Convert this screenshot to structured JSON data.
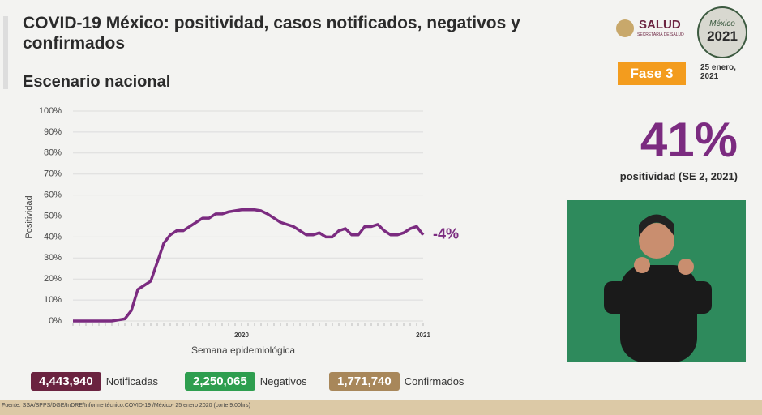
{
  "header": {
    "title": "COVID-19 México: positividad, casos notificados, negativos y confirmados",
    "subtitle": "Escenario nacional"
  },
  "logos": {
    "salud": "SALUD",
    "salud_sub": "SECRETARÍA DE SALUD",
    "mexico": "México",
    "year": "2021"
  },
  "phase": "Fase 3",
  "date": "25 enero, 2021",
  "headline": {
    "value": "41%",
    "caption": "positividad (SE 2, 2021)"
  },
  "summary": [
    {
      "value": "4,443,940",
      "label": "Notificadas",
      "color": "#6b2340"
    },
    {
      "value": "2,250,065",
      "label": "Negativos",
      "color": "#2e9e4f"
    },
    {
      "value": "1,771,740",
      "label": "Confirmados",
      "color": "#a8875a"
    }
  ],
  "footer": "Fuente: SSA/SPPS/DGE/InDRE/Informe técnico.COVID-19 /México- 25 enero 2020 (corte 9:00hrs)",
  "chart_data": {
    "type": "line",
    "y_label": "Positividad",
    "x_label": "Semana epidemiológica",
    "x_group_labels": [
      "2020",
      "2021"
    ],
    "annotation": "-4%",
    "categories": [
      null,
      null,
      null,
      null,
      null,
      null,
      null,
      null,
      null,
      null,
      null,
      null,
      null,
      null,
      null,
      null,
      null,
      null,
      null,
      null,
      null,
      null,
      null,
      null,
      null,
      null,
      null,
      null,
      null,
      null,
      null,
      null,
      null,
      null,
      null,
      null,
      null,
      null,
      null,
      null,
      null,
      null,
      null,
      null,
      null,
      null,
      null,
      null,
      null,
      null,
      null,
      null,
      null,
      null,
      null
    ],
    "series": [
      {
        "name": "Positividad",
        "color": "#7b2b80",
        "values": [
          0,
          0,
          0,
          0,
          0,
          0,
          0,
          0.5,
          1,
          5,
          15,
          17,
          19,
          28,
          37,
          41,
          43,
          43,
          45,
          47,
          49,
          49,
          51,
          51,
          52,
          52.5,
          53,
          53,
          53,
          52.5,
          51,
          49,
          47,
          46,
          45,
          43,
          41,
          41,
          42,
          40,
          40,
          43,
          44,
          41,
          41,
          45,
          45,
          46,
          43,
          41,
          41,
          42,
          44,
          45,
          41
        ]
      }
    ],
    "ylim": [
      0,
      100
    ],
    "yticks": [
      {
        "value": 0,
        "label": "0%"
      },
      {
        "value": 10,
        "label": "10%"
      },
      {
        "value": 20,
        "label": "20%"
      },
      {
        "value": 30,
        "label": "30%"
      },
      {
        "value": 40,
        "label": "40%"
      },
      {
        "value": 50,
        "label": "50%"
      },
      {
        "value": 60,
        "label": "60%"
      },
      {
        "value": 70,
        "label": "70%"
      },
      {
        "value": 80,
        "label": "80%"
      },
      {
        "value": 90,
        "label": "90%"
      },
      {
        "value": 100,
        "label": "100%"
      }
    ],
    "grid": true
  }
}
